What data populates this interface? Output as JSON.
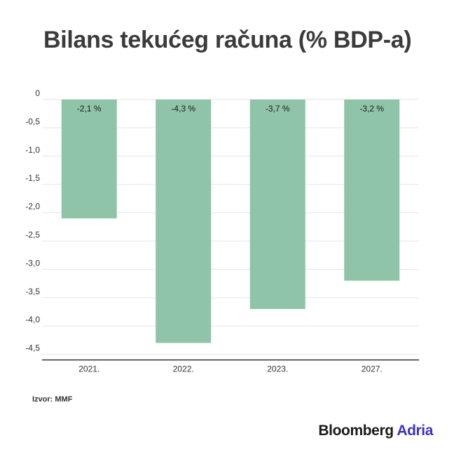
{
  "title": "Bilans tekućeg računa (% BDP-a)",
  "source": "Izvor: MMF",
  "brand": {
    "primary": "Bloomberg",
    "secondary": "Adria",
    "secondary_color": "#3a33c4"
  },
  "colors": {
    "bar": "#90c4a9",
    "grid": "#e6e6e6",
    "axis": "#333333"
  },
  "chart_data": {
    "type": "bar",
    "title": "Bilans tekućeg računa (% BDP-a)",
    "xlabel": "",
    "ylabel": "",
    "categories": [
      "2021.",
      "2022.",
      "2023.",
      "2027."
    ],
    "values": [
      -2.1,
      -4.3,
      -3.7,
      -3.2
    ],
    "data_labels": [
      "-2,1 %",
      "-4,3 %",
      "-3,7 %",
      "-3,2 %"
    ],
    "yticks": [
      0,
      -0.5,
      -1.0,
      -1.5,
      -2.0,
      -2.5,
      -3.0,
      -3.5,
      -4.0,
      -4.5
    ],
    "ytick_labels": [
      "0",
      "-0,5",
      "-1,0",
      "-1,5",
      "-2,0",
      "-2,5",
      "-3,0",
      "-3,5",
      "-4,0",
      "-4,5"
    ],
    "ylim": [
      -4.6,
      0
    ],
    "grid": true,
    "legend": "none"
  }
}
